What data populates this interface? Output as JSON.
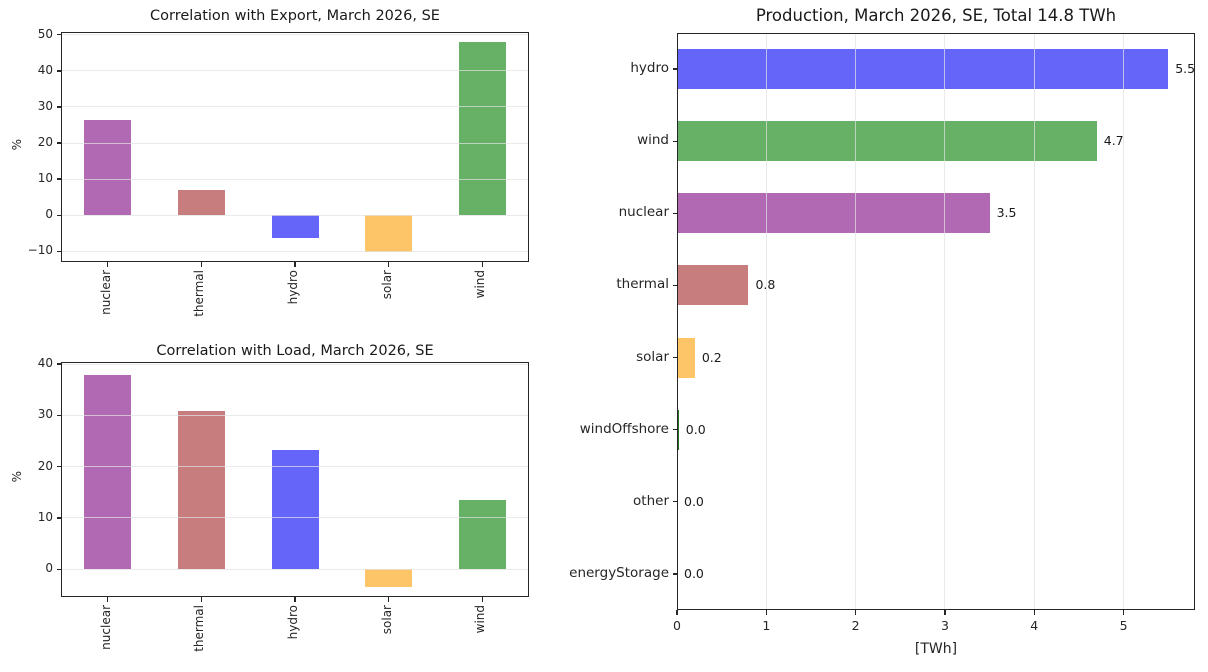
{
  "figure": {
    "background": "#ffffff",
    "text_color": "#262626"
  },
  "palette": {
    "nuclear": "#b169b4",
    "thermal": "#c77d7d",
    "hydro": "#6565fa",
    "solar": "#fdc468",
    "wind": "#66b166",
    "windOffshore": "#267326"
  },
  "chart_data": [
    {
      "id": "export_correlation",
      "type": "bar",
      "orientation": "vertical",
      "title": "Correlation with Export, March 2026, SE",
      "ylabel": "%",
      "xlabel": "",
      "categories": [
        "nuclear",
        "thermal",
        "hydro",
        "solar",
        "wind"
      ],
      "values": [
        26.3,
        7.1,
        -6.4,
        -10.1,
        47.9
      ],
      "bar_colors": [
        "#b169b4",
        "#c77d7d",
        "#6565fa",
        "#fdc468",
        "#66b166"
      ],
      "ylim": [
        -13.0,
        50.8
      ],
      "yticks": [
        -10,
        0,
        10,
        20,
        30,
        40,
        50
      ],
      "ytick_labels": [
        "−10",
        "0",
        "10",
        "20",
        "30",
        "40",
        "50"
      ],
      "grid": "horizontal",
      "xtick_rotation_deg": 90,
      "legend": "none"
    },
    {
      "id": "load_correlation",
      "type": "bar",
      "orientation": "vertical",
      "title": "Correlation with Load, March 2026, SE",
      "ylabel": "%",
      "xlabel": "",
      "categories": [
        "nuclear",
        "thermal",
        "hydro",
        "solar",
        "wind"
      ],
      "values": [
        37.9,
        30.8,
        23.2,
        -3.4,
        13.5
      ],
      "bar_colors": [
        "#b169b4",
        "#c77d7d",
        "#6565fa",
        "#fdc468",
        "#66b166"
      ],
      "ylim": [
        -5.4,
        40.4
      ],
      "yticks": [
        0,
        10,
        20,
        30,
        40
      ],
      "ytick_labels": [
        "0",
        "10",
        "20",
        "30",
        "40"
      ],
      "grid": "horizontal",
      "xtick_rotation_deg": 90,
      "legend": "none"
    },
    {
      "id": "production",
      "type": "bar",
      "orientation": "horizontal",
      "title": "Production, March 2026, SE, Total 14.8 TWh",
      "ylabel": "",
      "xlabel": "[TWh]",
      "categories": [
        "hydro",
        "wind",
        "nuclear",
        "thermal",
        "solar",
        "windOffshore",
        "other",
        "energyStorage"
      ],
      "values": [
        5.5,
        4.7,
        3.5,
        0.8,
        0.2,
        0.02,
        0.0,
        0.0
      ],
      "value_labels": [
        "5.5",
        "4.7",
        "3.5",
        "0.8",
        "0.2",
        "0.0",
        "0.0",
        "0.0"
      ],
      "bar_colors": [
        "#6565fa",
        "#66b166",
        "#b169b4",
        "#c77d7d",
        "#fdc468",
        "#267326",
        null,
        null
      ],
      "xlim": [
        0,
        5.8
      ],
      "xticks": [
        0,
        1,
        2,
        3,
        4,
        5
      ],
      "xtick_labels": [
        "0",
        "1",
        "2",
        "3",
        "4",
        "5"
      ],
      "grid": "vertical",
      "legend": "none"
    }
  ]
}
